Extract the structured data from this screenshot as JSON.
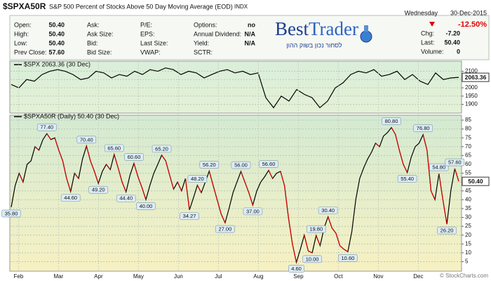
{
  "header": {
    "symbol": "$SPXA50R",
    "name": "S&P 500 Percent of Stocks Above 50 Day Moving Average (EOD)",
    "exchange": "INDX",
    "copyright": "© StockCharts.com"
  },
  "info": {
    "rows": [
      [
        {
          "label": "Open:",
          "value": "50.40"
        },
        {
          "label": "Ask:"
        },
        {
          "label": "P/E:"
        },
        {
          "label": "Options:",
          "value": "no"
        }
      ],
      [
        {
          "label": "High:",
          "value": "50.40"
        },
        {
          "label": "Ask Size:"
        },
        {
          "label": "EPS:"
        },
        {
          "label": "Annual Dividend:",
          "value": "N/A"
        }
      ],
      [
        {
          "label": "Low:",
          "value": "50.40"
        },
        {
          "label": "Bid:"
        },
        {
          "label": "Last Size:"
        },
        {
          "label": "Yield:",
          "value": "N/A"
        }
      ],
      [
        {
          "label": "Prev Close:",
          "value": "57.60"
        },
        {
          "label": "Bid Size:"
        },
        {
          "label": "VWAP:"
        },
        {
          "label": "SCTR:"
        }
      ]
    ]
  },
  "brand": {
    "first": "Best",
    "second": "Trader",
    "tagline": "לסחור נכון בשוק ההון"
  },
  "quote": {
    "day": "Wednesday",
    "date": "30-Dec-2015",
    "change_pct": "-12.50%",
    "items": [
      {
        "label": "Chg:",
        "value": "-7.20"
      },
      {
        "label": "Last:",
        "value": "50.40"
      },
      {
        "label": "Volume:",
        "value": "0"
      }
    ]
  },
  "chart_data": [
    {
      "type": "line",
      "title": "$SPX 2063.36 (30 Dec)",
      "last_value_label": "2063.36",
      "color": "#000000",
      "values": [
        2020,
        2000,
        2050,
        2040,
        2080,
        2100,
        2110,
        2100,
        2080,
        2050,
        2060,
        2100,
        2090,
        2060,
        2080,
        2070,
        2100,
        2080,
        2110,
        2100,
        2120,
        2110,
        2080,
        2100,
        2090,
        2060,
        2080,
        2100,
        2110,
        2090,
        2100,
        2080,
        2090,
        1940,
        1880,
        1950,
        1920,
        1990,
        1960,
        1940,
        1880,
        1920,
        2000,
        2030,
        2080,
        2100,
        2090,
        2110,
        2070,
        2080,
        2100,
        2050,
        2080,
        2040,
        2020,
        2090,
        2050,
        2060,
        2063.36
      ],
      "ylim": [
        1860,
        2140
      ],
      "yticks": [
        1900,
        1950,
        2000,
        2050,
        2100
      ],
      "grid": true
    },
    {
      "type": "line",
      "title": "$SPXA50R (Daily) 50.40 (30 Dec)",
      "last_value_label": "50.40",
      "color": "#000000",
      "down_color": "#dd0000",
      "months": [
        "Feb",
        "Mar",
        "Apr",
        "May",
        "Jun",
        "Jul",
        "Aug",
        "Sep",
        "Oct",
        "Nov",
        "Dec"
      ],
      "values": [
        35.8,
        48,
        55,
        50,
        60,
        62,
        70,
        68,
        74,
        77.4,
        74,
        75,
        68,
        62,
        52,
        44.6,
        55,
        52,
        63,
        70.4,
        62,
        56,
        49.2,
        56,
        60,
        57,
        65.6,
        58,
        50,
        44.4,
        54,
        60.6,
        53,
        47,
        40,
        48,
        55,
        60,
        65.2,
        62,
        54,
        46,
        50,
        45,
        52,
        34.27,
        41,
        48.2,
        44,
        50,
        56.2,
        48,
        40,
        32,
        27,
        35,
        44,
        50,
        56,
        50,
        44,
        37,
        45,
        50,
        53,
        56.6,
        52,
        55,
        56,
        48,
        30,
        15,
        4.6,
        12,
        20,
        11,
        10,
        19.8,
        14,
        24,
        30.4,
        24,
        21,
        14,
        12,
        10.6,
        22,
        40,
        52,
        58,
        63,
        67,
        72,
        70,
        76,
        78,
        80.8,
        77,
        68,
        60,
        55.4,
        64,
        70,
        72,
        76.8,
        68,
        45,
        40,
        54.8,
        40,
        26.2,
        45,
        57.6,
        50.4
      ],
      "value_labels": [
        "35.80",
        null,
        null,
        null,
        null,
        null,
        null,
        null,
        null,
        "77.40",
        null,
        null,
        null,
        null,
        null,
        "44.60",
        null,
        null,
        null,
        "70.40",
        null,
        null,
        "49.20",
        null,
        null,
        null,
        "65.60",
        null,
        null,
        "44.40",
        null,
        "60.60",
        null,
        null,
        "40.00",
        null,
        null,
        null,
        "65.20",
        null,
        null,
        null,
        null,
        null,
        null,
        "34.27",
        null,
        "48.20",
        null,
        null,
        "56.20",
        null,
        null,
        null,
        "27.00",
        null,
        null,
        null,
        "56.00",
        null,
        null,
        "37.00",
        null,
        null,
        null,
        "56.60",
        null,
        null,
        null,
        null,
        null,
        null,
        "4.60",
        null,
        null,
        null,
        "10.00",
        "19.80",
        null,
        null,
        "30.40",
        null,
        null,
        null,
        null,
        "10.60",
        null,
        null,
        null,
        null,
        null,
        null,
        null,
        null,
        null,
        null,
        "80.80",
        null,
        null,
        null,
        "55.40",
        null,
        null,
        null,
        "76.80",
        null,
        null,
        null,
        "54.80",
        null,
        "26.20",
        null,
        "57.60",
        null
      ],
      "ylim": [
        2,
        87
      ],
      "yticks": [
        5,
        10,
        15,
        20,
        25,
        30,
        35,
        40,
        45,
        50,
        55,
        60,
        65,
        70,
        75,
        80,
        85
      ],
      "grid": true
    }
  ]
}
